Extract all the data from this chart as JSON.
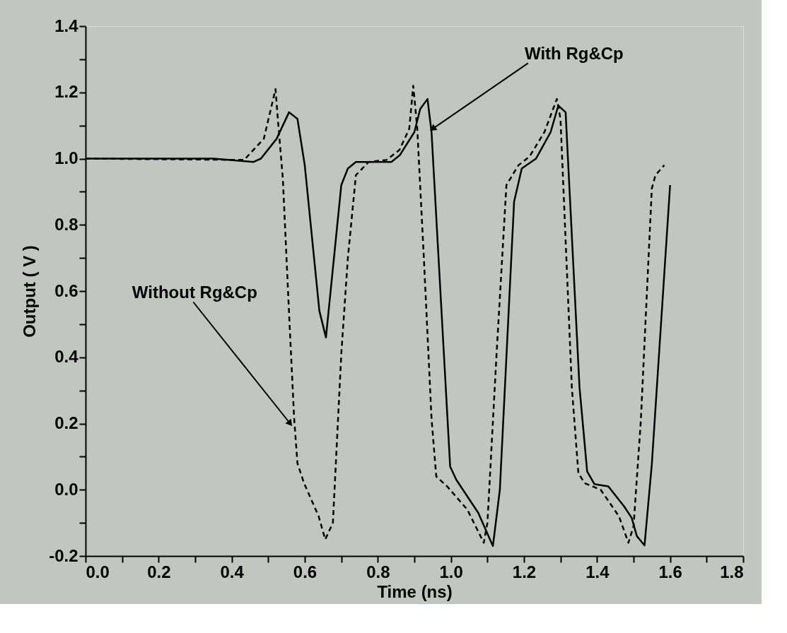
{
  "chart_data": {
    "type": "line",
    "xlabel": "Time (ns)",
    "ylabel": "Output  ( V )",
    "xlim": [
      0,
      1.8
    ],
    "ylim": [
      -0.2,
      1.4
    ],
    "xticks": [
      {
        "value": 0,
        "label": "0.0"
      },
      {
        "value": 0.1,
        "label": null
      },
      0.2,
      {
        "value": 0.3,
        "label": null
      },
      0.4,
      {
        "value": 0.5,
        "label": null
      },
      0.6,
      {
        "value": 0.7,
        "label": null
      },
      0.8,
      {
        "value": 0.9,
        "label": null
      },
      {
        "value": 1.0,
        "label": "1.0"
      },
      {
        "value": 1.1,
        "label": null
      },
      1.2,
      {
        "value": 1.3,
        "label": null
      },
      1.4,
      {
        "value": 1.5,
        "label": null
      },
      1.6,
      {
        "value": 1.7,
        "label": null
      },
      1.8
    ],
    "yticks": [
      -0.2,
      {
        "value": -0.1,
        "label": null
      },
      {
        "value": 0.0,
        "label": "0.0"
      },
      {
        "value": 0.1,
        "label": null
      },
      0.2,
      {
        "value": 0.3,
        "label": null
      },
      0.4,
      {
        "value": 0.5,
        "label": null
      },
      0.6,
      {
        "value": 0.7,
        "label": null
      },
      0.8,
      {
        "value": 0.9,
        "label": null
      },
      {
        "value": 1.0,
        "label": "1.0"
      },
      {
        "value": 1.1,
        "label": null
      },
      1.2,
      {
        "value": 1.3,
        "label": null
      },
      1.4
    ],
    "grid": false,
    "marker": "none",
    "series": [
      {
        "color": "#000000",
        "line_style": "solid",
        "x": [
          0,
          0.35,
          0.46,
          0.48,
          0.523,
          0.557,
          0.58,
          0.6,
          0.64,
          0.658,
          0.7,
          0.718,
          0.74,
          0.76,
          0.837,
          0.86,
          0.9,
          0.916,
          0.936,
          0.947,
          0.998,
          1.015,
          1.075,
          1.115,
          1.134,
          1.173,
          1.194,
          1.233,
          1.273,
          1.294,
          1.314,
          1.352,
          1.373,
          1.393,
          1.431,
          1.474,
          1.495,
          1.509,
          1.53,
          1.55,
          1.6
        ],
        "values": [
          1.0,
          1.0,
          0.99,
          1.0,
          1.06,
          1.14,
          1.12,
          0.98,
          0.54,
          0.46,
          0.92,
          0.97,
          0.99,
          0.99,
          0.99,
          1.01,
          1.08,
          1.15,
          1.18,
          1.08,
          0.07,
          0.03,
          -0.07,
          -0.17,
          0.0,
          0.87,
          0.97,
          1.0,
          1.08,
          1.16,
          1.14,
          0.31,
          0.055,
          0.017,
          0.01,
          -0.05,
          -0.085,
          -0.14,
          -0.168,
          0.077,
          0.92
        ]
      },
      {
        "color": "#000000",
        "line_style": "dashed",
        "x": [
          0,
          0.434,
          0.488,
          0.52,
          0.527,
          0.54,
          0.558,
          0.571,
          0.58,
          0.598,
          0.638,
          0.656,
          0.677,
          0.7,
          0.718,
          0.74,
          0.775,
          0.824,
          0.859,
          0.886,
          0.897,
          0.908,
          0.926,
          0.947,
          0.96,
          0.99,
          1.045,
          1.09,
          1.1,
          1.125,
          1.152,
          1.185,
          1.215,
          1.256,
          1.29,
          1.3,
          1.331,
          1.349,
          1.366,
          1.41,
          1.46,
          1.486,
          1.5,
          1.52,
          1.55,
          1.56,
          1.584
        ],
        "values": [
          1.0,
          0.996,
          1.06,
          1.21,
          1.11,
          0.94,
          0.51,
          0.215,
          0.08,
          0.02,
          -0.08,
          -0.15,
          -0.1,
          0.41,
          0.7,
          0.95,
          0.99,
          0.996,
          1.026,
          1.09,
          1.22,
          1.09,
          0.7,
          0.215,
          0.04,
          0.01,
          -0.06,
          -0.16,
          -0.1,
          0.41,
          0.92,
          0.98,
          1.006,
          1.08,
          1.18,
          1.12,
          0.31,
          0.05,
          0.02,
          0.0,
          -0.08,
          -0.16,
          -0.11,
          0.21,
          0.91,
          0.95,
          0.98
        ]
      }
    ],
    "annotations": [
      {
        "text": "With Rg&Cp",
        "x": 0.95,
        "y": 1.09
      },
      {
        "text": "Without Rg&Cp",
        "x": 0.56,
        "y": 0.2
      }
    ]
  }
}
